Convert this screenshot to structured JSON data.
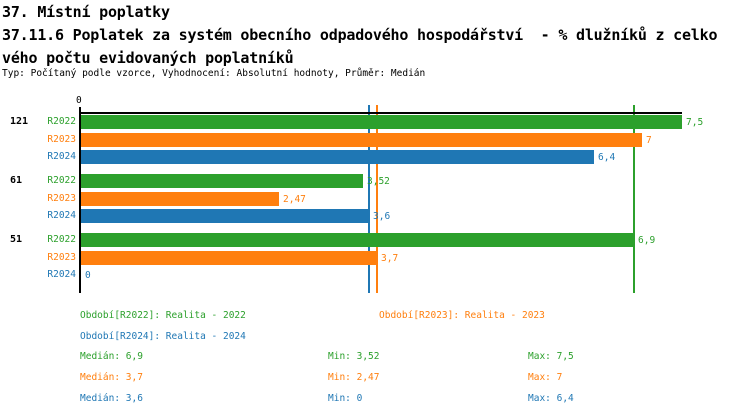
{
  "header": {
    "title": "37. Místní poplatky",
    "subtitle_line1": "37.11.6 Poplatek za systém obecního odpadového hospodářství  - % dlužníků z celko",
    "subtitle_line2": "vého počtu evidovaných poplatníků",
    "meta": "Typ: Počítaný podle vzorce, Vyhodnocení: Absolutní hodnoty, Průměr: Medián"
  },
  "chart_data": {
    "type": "bar",
    "orientation": "horizontal",
    "title": "",
    "xlabel": "",
    "ylabel": "",
    "xlim": [
      0,
      7.5
    ],
    "grid": false,
    "axis_tick_label": "0",
    "legend_position": "bottom",
    "categories": [
      "121",
      "61",
      "51"
    ],
    "series": [
      {
        "name": "R2022",
        "color": "#2ca02c",
        "values": [
          7.5,
          3.52,
          6.9
        ],
        "value_labels": [
          "7,5",
          "3,52",
          "6,9"
        ],
        "median": 6.9
      },
      {
        "name": "R2023",
        "color": "#ff7f0e",
        "values": [
          7.0,
          2.47,
          3.7
        ],
        "value_labels": [
          "7",
          "2,47",
          "3,7"
        ],
        "median": 3.7
      },
      {
        "name": "R2024",
        "color": "#1f77b4",
        "values": [
          6.4,
          3.6,
          0
        ],
        "value_labels": [
          "6,4",
          "3,6",
          "0"
        ],
        "median": 3.6
      }
    ],
    "median_lines": [
      6.9,
      3.7,
      3.6
    ]
  },
  "legend": {
    "items": [
      {
        "label": "Období[R2022]: Realita - 2022",
        "color": "#2ca02c"
      },
      {
        "label": "Období[R2023]: Realita - 2023",
        "color": "#ff7f0e"
      },
      {
        "label": "Období[R2024]: Realita - 2024",
        "color": "#1f77b4"
      }
    ]
  },
  "stats": {
    "rows": [
      {
        "median": "Medián: 6,9",
        "min": "Min: 3,52",
        "max": "Max: 7,5",
        "color": "#2ca02c"
      },
      {
        "median": "Medián: 3,7",
        "min": "Min: 2,47",
        "max": "Max: 7",
        "color": "#ff7f0e"
      },
      {
        "median": "Medián: 3,6",
        "min": "Min: 0",
        "max": "Max: 6,4",
        "color": "#1f77b4"
      }
    ]
  },
  "colors": {
    "axis": "#000000",
    "background": "#ffffff"
  }
}
